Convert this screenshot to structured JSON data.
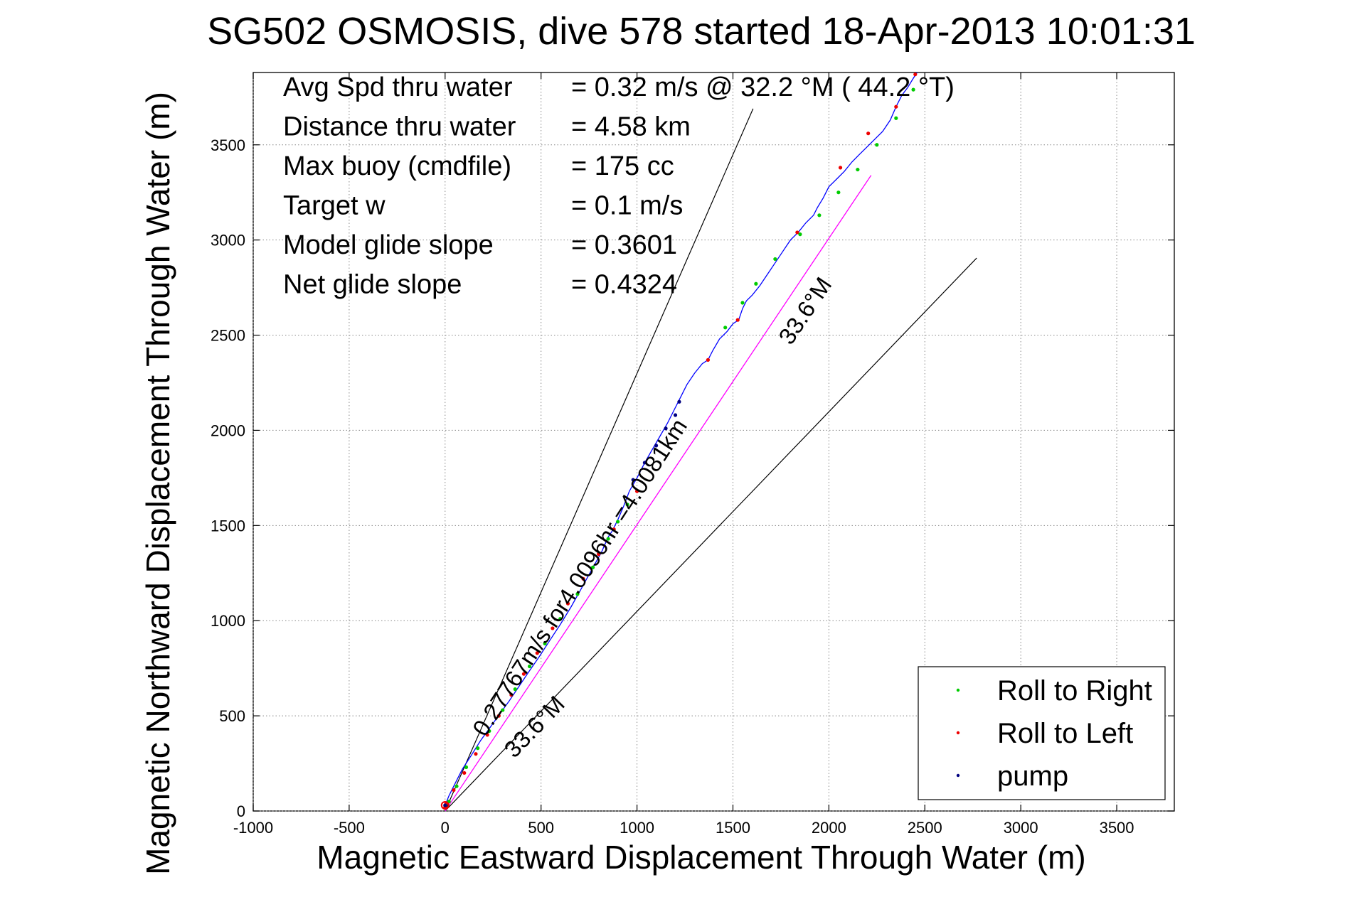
{
  "chart_data": {
    "type": "line",
    "title": "SG502 OSMOSIS, dive 578 started 18-Apr-2013 10:01:31",
    "xlabel": "Magnetic Eastward Displacement Through Water (m)",
    "ylabel": "Magnetic Northward Displacement Through Water (m)",
    "xlim": [
      -1000,
      3800
    ],
    "ylim": [
      0,
      3880
    ],
    "xticks": [
      -1000,
      -500,
      0,
      500,
      1000,
      1500,
      2000,
      2500,
      3000,
      3500
    ],
    "yticks": [
      0,
      500,
      1000,
      1500,
      2000,
      2500,
      3000,
      3500
    ],
    "xtick_labels": [
      "-1000",
      "-500",
      "0",
      "500",
      "1000",
      "1500",
      "2000",
      "2500",
      "3000",
      "3500"
    ],
    "ytick_labels": [
      "0",
      "500",
      "1000",
      "1500",
      "2000",
      "2500",
      "3000",
      "3500"
    ],
    "grid": true,
    "legend_placement": "bottom-right",
    "stats": [
      {
        "label": "Avg Spd thru water",
        "value": "=  0.32 m/s @  32.2 °M ( 44.2 °T)"
      },
      {
        "label": "Distance thru water",
        "value": "=  4.58 km"
      },
      {
        "label": "Max buoy (cmdfile)",
        "value": "= 175 cc"
      },
      {
        "label": "Target w",
        "value": "= 0.1 m/s"
      },
      {
        "label": "Model glide slope",
        "value": "= 0.3601"
      },
      {
        "label": "Net glide slope",
        "value": "= 0.4324"
      }
    ],
    "annotations": [
      {
        "text": "0.27767m/s for4.0096hr =4.0081km"
      },
      {
        "text": "33.6°M"
      },
      {
        "text": "33.6°M"
      }
    ],
    "legend": [
      {
        "label": "Roll to Right",
        "color": "#00cc00"
      },
      {
        "label": "Roll to Left",
        "color": "#ee0000"
      },
      {
        "label": "pump",
        "color": "#000080"
      }
    ],
    "track": {
      "color": "#0000ff",
      "x": [
        0,
        20,
        55,
        90,
        135,
        185,
        235,
        285,
        335,
        385,
        435,
        490,
        545,
        600,
        655,
        705,
        760,
        815,
        850,
        870,
        900,
        930,
        960,
        1000,
        1040,
        1080,
        1120,
        1160,
        1195,
        1225,
        1260,
        1300,
        1340,
        1370,
        1395,
        1430,
        1470,
        1500,
        1530,
        1550,
        1570,
        1600,
        1640,
        1680,
        1720,
        1760,
        1800,
        1840,
        1880,
        1920,
        1940,
        1970,
        2000,
        2040,
        2080,
        2120,
        2160,
        2200,
        2240,
        2280,
        2320,
        2350,
        2380,
        2410,
        2440,
        2460
      ],
      "y": [
        30,
        80,
        150,
        220,
        290,
        370,
        440,
        510,
        580,
        655,
        730,
        810,
        895,
        980,
        1070,
        1160,
        1260,
        1360,
        1440,
        1470,
        1530,
        1600,
        1680,
        1750,
        1830,
        1900,
        1970,
        2040,
        2110,
        2170,
        2240,
        2300,
        2350,
        2370,
        2420,
        2480,
        2520,
        2560,
        2580,
        2640,
        2680,
        2710,
        2760,
        2820,
        2880,
        2940,
        3000,
        3040,
        3090,
        3130,
        3170,
        3220,
        3280,
        3320,
        3360,
        3410,
        3450,
        3490,
        3530,
        3570,
        3630,
        3700,
        3760,
        3800,
        3850,
        3880
      ]
    },
    "magenta_line": {
      "color": "#ff00ff",
      "x": [
        0,
        2220
      ],
      "y": [
        0,
        3340
      ]
    },
    "cone_lines": [
      {
        "color": "#000000",
        "x": [
          0,
          1605
        ],
        "y": [
          0,
          3690
        ]
      },
      {
        "color": "#000000",
        "x": [
          0,
          2770
        ],
        "y": [
          0,
          2905
        ]
      }
    ],
    "roll_right": {
      "x": [
        20,
        60,
        110,
        170,
        230,
        300,
        365,
        440,
        520,
        600,
        690,
        770,
        850,
        900,
        950,
        1460,
        1550,
        1620,
        1720,
        1850,
        1950,
        2050,
        2150,
        2250,
        2350,
        2440
      ],
      "y": [
        50,
        130,
        230,
        330,
        420,
        530,
        640,
        760,
        880,
        1010,
        1140,
        1280,
        1430,
        1520,
        1610,
        2540,
        2670,
        2770,
        2900,
        3030,
        3130,
        3250,
        3370,
        3500,
        3640,
        3790
      ]
    },
    "roll_left": {
      "x": [
        0,
        5,
        45,
        100,
        160,
        220,
        280,
        345,
        410,
        480,
        560,
        640,
        720,
        800,
        880,
        1000,
        1370,
        1525,
        1835,
        2060,
        2205,
        2350,
        2450
      ],
      "y": [
        20,
        40,
        110,
        200,
        300,
        400,
        500,
        610,
        720,
        830,
        960,
        1090,
        1220,
        1350,
        1480,
        1680,
        2370,
        2580,
        3040,
        3380,
        3560,
        3700,
        3870
      ]
    },
    "pump": {
      "x": [
        0,
        980,
        1040,
        1100,
        1150,
        1200,
        1220
      ],
      "y": [
        30,
        1740,
        1830,
        1920,
        2010,
        2080,
        2150
      ]
    }
  }
}
